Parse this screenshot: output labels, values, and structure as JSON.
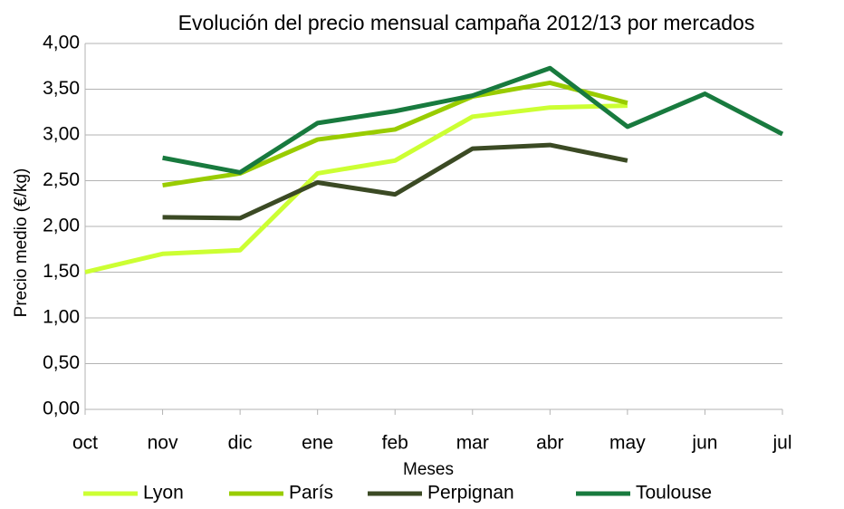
{
  "chart_data": {
    "type": "line",
    "title": "Evolución del precio mensual campaña 2012/13 por mercados",
    "x_label": "Meses",
    "y_label": "Precio medio (€/kg)",
    "categories": [
      "oct",
      "nov",
      "dic",
      "ene",
      "feb",
      "mar",
      "abr",
      "may",
      "jun",
      "jul"
    ],
    "series": [
      {
        "name": "Lyon",
        "color": "#ccff33",
        "values": [
          1.5,
          1.7,
          1.74,
          2.58,
          2.72,
          3.2,
          3.3,
          3.32,
          null,
          null
        ]
      },
      {
        "name": "París",
        "color": "#99cc00",
        "values": [
          null,
          2.45,
          2.58,
          2.95,
          3.06,
          3.42,
          3.57,
          3.35,
          null,
          null
        ]
      },
      {
        "name": "Perpignan",
        "color": "#3b4a24",
        "values": [
          null,
          2.1,
          2.09,
          2.48,
          2.35,
          2.85,
          2.89,
          2.72,
          null,
          null
        ]
      },
      {
        "name": "Toulouse",
        "color": "#187a3e",
        "values": [
          null,
          2.75,
          2.59,
          3.13,
          3.26,
          3.43,
          3.73,
          3.09,
          3.45,
          3.01
        ]
      }
    ],
    "ylim": [
      0,
      4
    ],
    "yticks": [
      {
        "value": 0,
        "label": "0,00"
      },
      {
        "value": 0.5,
        "label": "0,50"
      },
      {
        "value": 1,
        "label": "1,00"
      },
      {
        "value": 1.5,
        "label": "1,50"
      },
      {
        "value": 2,
        "label": "2,00"
      },
      {
        "value": 2.5,
        "label": "2,50"
      },
      {
        "value": 3,
        "label": "3,00"
      },
      {
        "value": 3.5,
        "label": "3,50"
      },
      {
        "value": 4,
        "label": "4,00"
      }
    ],
    "grid": true,
    "legend": "bottom"
  }
}
